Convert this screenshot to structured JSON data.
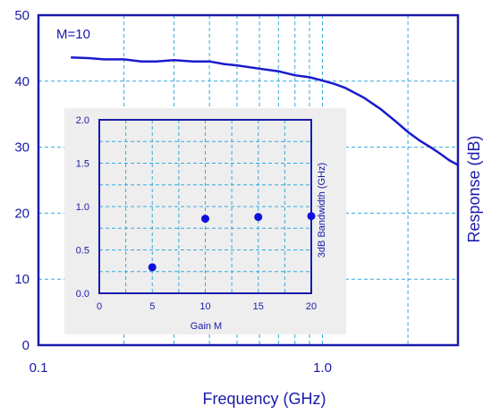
{
  "colors": {
    "axis": "#1a1aaa",
    "grid": "#33aadd",
    "curve": "#1a1acc",
    "inset_bg": "#eeeeee",
    "marker": "#1010dd"
  },
  "chart_data": [
    {
      "type": "line",
      "title": "",
      "xlabel": "Frequency (GHz)",
      "ylabel": "Response (dB)",
      "x_scale": "log",
      "xlim": [
        0.1,
        3
      ],
      "ylim": [
        0,
        50
      ],
      "x_tick_labels": [
        "0.1",
        "1.0"
      ],
      "y_tick_labels": [
        "0",
        "10",
        "20",
        "30",
        "40",
        "50"
      ],
      "grid": true,
      "annotation": "M=10",
      "series": [
        {
          "x": [
            0.13,
            0.15,
            0.17,
            0.2,
            0.23,
            0.26,
            0.3,
            0.35,
            0.4,
            0.45,
            0.5,
            0.6,
            0.7,
            0.8,
            0.9,
            1.0,
            1.1,
            1.2,
            1.4,
            1.6,
            1.8,
            2.0,
            2.2,
            2.4,
            2.6,
            2.8,
            3.0
          ],
          "y": [
            43.6,
            43.5,
            43.3,
            43.3,
            43.0,
            43.0,
            43.2,
            43.0,
            43.0,
            42.6,
            42.4,
            41.9,
            41.5,
            40.9,
            40.6,
            40.1,
            39.6,
            39.0,
            37.5,
            35.8,
            34.0,
            32.3,
            31.0,
            30.0,
            29.0,
            28.0,
            27.3
          ]
        }
      ]
    },
    {
      "type": "scatter",
      "title": "",
      "xlabel": "Gain M",
      "ylabel": "3dB Bandwidth (GHz)",
      "xlim": [
        0,
        20
      ],
      "ylim": [
        0,
        2
      ],
      "x_tick_labels": [
        "0",
        "5",
        "10",
        "15",
        "20"
      ],
      "y_tick_labels": [
        "0.0",
        "0.5",
        "1.0",
        "1.5",
        "2.0"
      ],
      "grid": true,
      "series": [
        {
          "x": [
            5,
            10,
            15,
            20
          ],
          "y": [
            0.3,
            0.86,
            0.88,
            0.89
          ]
        }
      ]
    }
  ]
}
